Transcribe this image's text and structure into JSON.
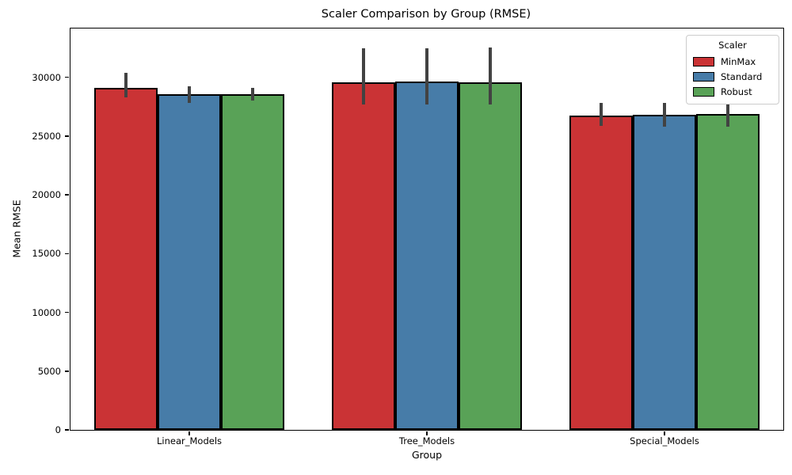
{
  "chart_data": {
    "type": "bar",
    "title": "Scaler Comparison by Group (RMSE)",
    "xlabel": "Group",
    "ylabel": "Mean RMSE",
    "categories": [
      "Linear_Models",
      "Tree_Models",
      "Special_Models"
    ],
    "series": [
      {
        "name": "MinMax",
        "color": "#ca3335",
        "values": [
          29100,
          29550,
          26750
        ],
        "ci_low": [
          28300,
          27650,
          25850
        ],
        "ci_high": [
          30350,
          32450,
          27850
        ]
      },
      {
        "name": "Standard",
        "color": "#477ca8",
        "values": [
          28550,
          29650,
          26800
        ],
        "ci_low": [
          27850,
          27700,
          25800
        ],
        "ci_high": [
          29200,
          32450,
          27850
        ]
      },
      {
        "name": "Robust",
        "color": "#59a257",
        "values": [
          28550,
          29600,
          26850
        ],
        "ci_low": [
          28000,
          27700,
          25800
        ],
        "ci_high": [
          29100,
          32500,
          27700
        ]
      }
    ],
    "ylim": [
      0,
      34150
    ],
    "yticks": [
      0,
      5000,
      10000,
      15000,
      20000,
      25000,
      30000
    ],
    "legend_title": "Scaler",
    "legend_position": "upper right",
    "grid": false,
    "bar_edge_color": "#000000",
    "error_bar_color": "#424242",
    "background_color": "#ffffff"
  }
}
